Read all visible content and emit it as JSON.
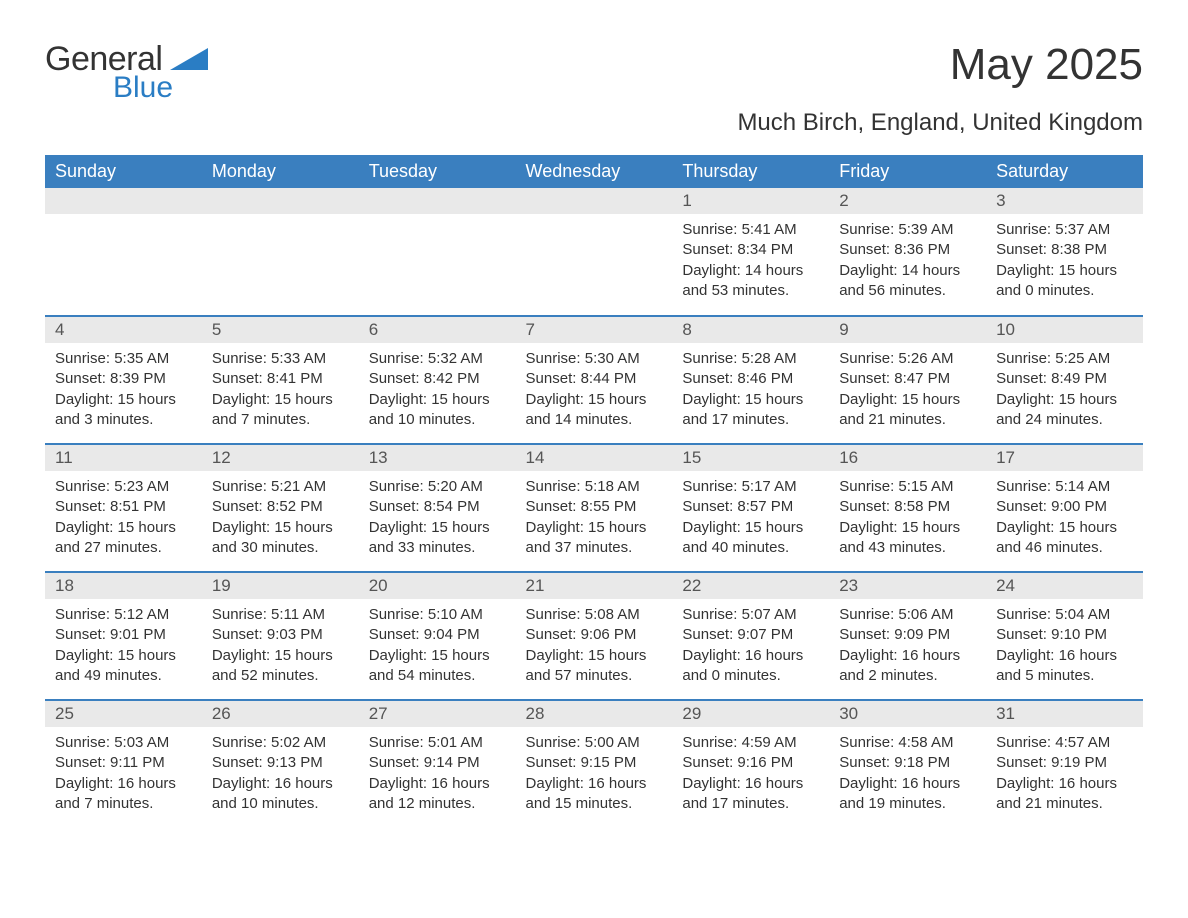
{
  "brand": {
    "word1": "General",
    "word2": "Blue",
    "word1_color": "#333333",
    "word2_color": "#2a7dc4",
    "shape_color": "#2a7dc4"
  },
  "header": {
    "title": "May 2025",
    "location": "Much Birch, England, United Kingdom",
    "title_fontsize": 44,
    "location_fontsize": 24
  },
  "calendar": {
    "header_bg": "#3a7fbf",
    "header_fg": "#ffffff",
    "daynum_bg": "#e9e9e9",
    "daynum_fg": "#555555",
    "rule_color": "#3a7fbf",
    "body_fg": "#333333",
    "columns": [
      "Sunday",
      "Monday",
      "Tuesday",
      "Wednesday",
      "Thursday",
      "Friday",
      "Saturday"
    ],
    "weeks": [
      [
        {
          "day": "",
          "sunrise": "",
          "sunset": "",
          "daylight": ""
        },
        {
          "day": "",
          "sunrise": "",
          "sunset": "",
          "daylight": ""
        },
        {
          "day": "",
          "sunrise": "",
          "sunset": "",
          "daylight": ""
        },
        {
          "day": "",
          "sunrise": "",
          "sunset": "",
          "daylight": ""
        },
        {
          "day": "1",
          "sunrise": "Sunrise: 5:41 AM",
          "sunset": "Sunset: 8:34 PM",
          "daylight": "Daylight: 14 hours and 53 minutes."
        },
        {
          "day": "2",
          "sunrise": "Sunrise: 5:39 AM",
          "sunset": "Sunset: 8:36 PM",
          "daylight": "Daylight: 14 hours and 56 minutes."
        },
        {
          "day": "3",
          "sunrise": "Sunrise: 5:37 AM",
          "sunset": "Sunset: 8:38 PM",
          "daylight": "Daylight: 15 hours and 0 minutes."
        }
      ],
      [
        {
          "day": "4",
          "sunrise": "Sunrise: 5:35 AM",
          "sunset": "Sunset: 8:39 PM",
          "daylight": "Daylight: 15 hours and 3 minutes."
        },
        {
          "day": "5",
          "sunrise": "Sunrise: 5:33 AM",
          "sunset": "Sunset: 8:41 PM",
          "daylight": "Daylight: 15 hours and 7 minutes."
        },
        {
          "day": "6",
          "sunrise": "Sunrise: 5:32 AM",
          "sunset": "Sunset: 8:42 PM",
          "daylight": "Daylight: 15 hours and 10 minutes."
        },
        {
          "day": "7",
          "sunrise": "Sunrise: 5:30 AM",
          "sunset": "Sunset: 8:44 PM",
          "daylight": "Daylight: 15 hours and 14 minutes."
        },
        {
          "day": "8",
          "sunrise": "Sunrise: 5:28 AM",
          "sunset": "Sunset: 8:46 PM",
          "daylight": "Daylight: 15 hours and 17 minutes."
        },
        {
          "day": "9",
          "sunrise": "Sunrise: 5:26 AM",
          "sunset": "Sunset: 8:47 PM",
          "daylight": "Daylight: 15 hours and 21 minutes."
        },
        {
          "day": "10",
          "sunrise": "Sunrise: 5:25 AM",
          "sunset": "Sunset: 8:49 PM",
          "daylight": "Daylight: 15 hours and 24 minutes."
        }
      ],
      [
        {
          "day": "11",
          "sunrise": "Sunrise: 5:23 AM",
          "sunset": "Sunset: 8:51 PM",
          "daylight": "Daylight: 15 hours and 27 minutes."
        },
        {
          "day": "12",
          "sunrise": "Sunrise: 5:21 AM",
          "sunset": "Sunset: 8:52 PM",
          "daylight": "Daylight: 15 hours and 30 minutes."
        },
        {
          "day": "13",
          "sunrise": "Sunrise: 5:20 AM",
          "sunset": "Sunset: 8:54 PM",
          "daylight": "Daylight: 15 hours and 33 minutes."
        },
        {
          "day": "14",
          "sunrise": "Sunrise: 5:18 AM",
          "sunset": "Sunset: 8:55 PM",
          "daylight": "Daylight: 15 hours and 37 minutes."
        },
        {
          "day": "15",
          "sunrise": "Sunrise: 5:17 AM",
          "sunset": "Sunset: 8:57 PM",
          "daylight": "Daylight: 15 hours and 40 minutes."
        },
        {
          "day": "16",
          "sunrise": "Sunrise: 5:15 AM",
          "sunset": "Sunset: 8:58 PM",
          "daylight": "Daylight: 15 hours and 43 minutes."
        },
        {
          "day": "17",
          "sunrise": "Sunrise: 5:14 AM",
          "sunset": "Sunset: 9:00 PM",
          "daylight": "Daylight: 15 hours and 46 minutes."
        }
      ],
      [
        {
          "day": "18",
          "sunrise": "Sunrise: 5:12 AM",
          "sunset": "Sunset: 9:01 PM",
          "daylight": "Daylight: 15 hours and 49 minutes."
        },
        {
          "day": "19",
          "sunrise": "Sunrise: 5:11 AM",
          "sunset": "Sunset: 9:03 PM",
          "daylight": "Daylight: 15 hours and 52 minutes."
        },
        {
          "day": "20",
          "sunrise": "Sunrise: 5:10 AM",
          "sunset": "Sunset: 9:04 PM",
          "daylight": "Daylight: 15 hours and 54 minutes."
        },
        {
          "day": "21",
          "sunrise": "Sunrise: 5:08 AM",
          "sunset": "Sunset: 9:06 PM",
          "daylight": "Daylight: 15 hours and 57 minutes."
        },
        {
          "day": "22",
          "sunrise": "Sunrise: 5:07 AM",
          "sunset": "Sunset: 9:07 PM",
          "daylight": "Daylight: 16 hours and 0 minutes."
        },
        {
          "day": "23",
          "sunrise": "Sunrise: 5:06 AM",
          "sunset": "Sunset: 9:09 PM",
          "daylight": "Daylight: 16 hours and 2 minutes."
        },
        {
          "day": "24",
          "sunrise": "Sunrise: 5:04 AM",
          "sunset": "Sunset: 9:10 PM",
          "daylight": "Daylight: 16 hours and 5 minutes."
        }
      ],
      [
        {
          "day": "25",
          "sunrise": "Sunrise: 5:03 AM",
          "sunset": "Sunset: 9:11 PM",
          "daylight": "Daylight: 16 hours and 7 minutes."
        },
        {
          "day": "26",
          "sunrise": "Sunrise: 5:02 AM",
          "sunset": "Sunset: 9:13 PM",
          "daylight": "Daylight: 16 hours and 10 minutes."
        },
        {
          "day": "27",
          "sunrise": "Sunrise: 5:01 AM",
          "sunset": "Sunset: 9:14 PM",
          "daylight": "Daylight: 16 hours and 12 minutes."
        },
        {
          "day": "28",
          "sunrise": "Sunrise: 5:00 AM",
          "sunset": "Sunset: 9:15 PM",
          "daylight": "Daylight: 16 hours and 15 minutes."
        },
        {
          "day": "29",
          "sunrise": "Sunrise: 4:59 AM",
          "sunset": "Sunset: 9:16 PM",
          "daylight": "Daylight: 16 hours and 17 minutes."
        },
        {
          "day": "30",
          "sunrise": "Sunrise: 4:58 AM",
          "sunset": "Sunset: 9:18 PM",
          "daylight": "Daylight: 16 hours and 19 minutes."
        },
        {
          "day": "31",
          "sunrise": "Sunrise: 4:57 AM",
          "sunset": "Sunset: 9:19 PM",
          "daylight": "Daylight: 16 hours and 21 minutes."
        }
      ]
    ]
  }
}
